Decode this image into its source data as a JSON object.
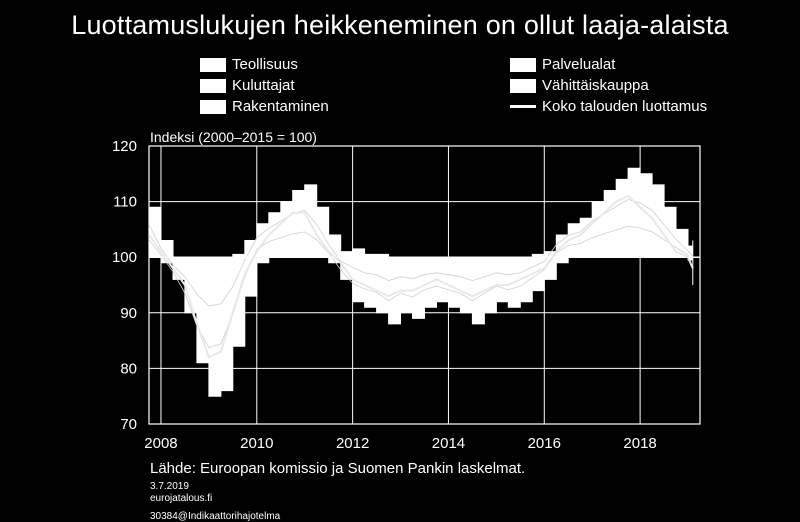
{
  "title": "Luottamuslukujen heikkeneminen on ollut laaja-alaista",
  "legend": [
    {
      "label": "Teollisuus",
      "kind": "area"
    },
    {
      "label": "Palvelualat",
      "kind": "area"
    },
    {
      "label": "Kuluttajat",
      "kind": "area"
    },
    {
      "label": "Vähittäiskauppa",
      "kind": "area"
    },
    {
      "label": "Rakentaminen",
      "kind": "area"
    },
    {
      "label": "Koko talouden luottamus",
      "kind": "line"
    }
  ],
  "unit_label": "Indeksi (2000–2015 = 100)",
  "source": "Lähde: Euroopan komissio ja Suomen Pankin laskelmat.",
  "date": "3.7.2019",
  "site": "eurojatalous.fi",
  "code": "30384@Indikaattorihajotelma",
  "colors": {
    "background": "#000000",
    "foreground": "#ffffff",
    "grid": "#ffffff"
  },
  "chart_data": {
    "type": "area",
    "xlim": [
      2007.75,
      2019.25
    ],
    "ylim": [
      70,
      120
    ],
    "x_ticks": [
      2008,
      2010,
      2012,
      2014,
      2016,
      2018
    ],
    "y_ticks": [
      70,
      80,
      90,
      100,
      110,
      120
    ],
    "baseline": 100,
    "grid": true,
    "x": [
      2007.75,
      2008.0,
      2008.25,
      2008.5,
      2008.75,
      2009.0,
      2009.25,
      2009.5,
      2009.75,
      2010.0,
      2010.25,
      2010.5,
      2010.75,
      2011.0,
      2011.25,
      2011.5,
      2011.75,
      2012.0,
      2012.25,
      2012.5,
      2012.75,
      2013.0,
      2013.25,
      2013.5,
      2013.75,
      2014.0,
      2014.25,
      2014.5,
      2014.75,
      2015.0,
      2015.25,
      2015.5,
      2015.75,
      2016.0,
      2016.25,
      2016.5,
      2016.75,
      2017.0,
      2017.25,
      2017.5,
      2017.75,
      2018.0,
      2018.25,
      2018.5,
      2018.75,
      2019.0,
      2019.1
    ],
    "upper_envelope": [
      109,
      103,
      100,
      100,
      100,
      100,
      100,
      100.5,
      103,
      106,
      108,
      110,
      112,
      113,
      109,
      104,
      101,
      101.5,
      100.5,
      100.5,
      100,
      100,
      100,
      100,
      100,
      100,
      100,
      100,
      100,
      100,
      100,
      100,
      100.5,
      101,
      104,
      106,
      107,
      110,
      112,
      114,
      116,
      115,
      113,
      109,
      105,
      102,
      103
    ],
    "lower_envelope": [
      100,
      99,
      96,
      90,
      81,
      75,
      76,
      84,
      93,
      99,
      100,
      100,
      100,
      100,
      100,
      99,
      96,
      92,
      91,
      90,
      88,
      90,
      89,
      91,
      92,
      91,
      90,
      88,
      90,
      92,
      91,
      92,
      94,
      96,
      99,
      100,
      100,
      100,
      100,
      100,
      100,
      100,
      100,
      100,
      100,
      99.5,
      95
    ],
    "series": [
      {
        "name": "Koko talouden luottamus",
        "values": [
          104,
          101,
          98,
          95,
          88,
          82,
          83,
          90,
          97,
          101,
          104,
          106,
          108,
          108,
          104,
          101,
          99,
          96,
          95,
          94,
          93,
          94,
          94,
          95,
          96,
          95,
          94,
          93,
          94,
          95,
          95,
          96,
          97,
          98,
          101,
          103,
          104,
          106,
          108,
          110,
          111,
          109,
          107,
          104,
          101,
          100,
          98
        ]
      }
    ]
  }
}
